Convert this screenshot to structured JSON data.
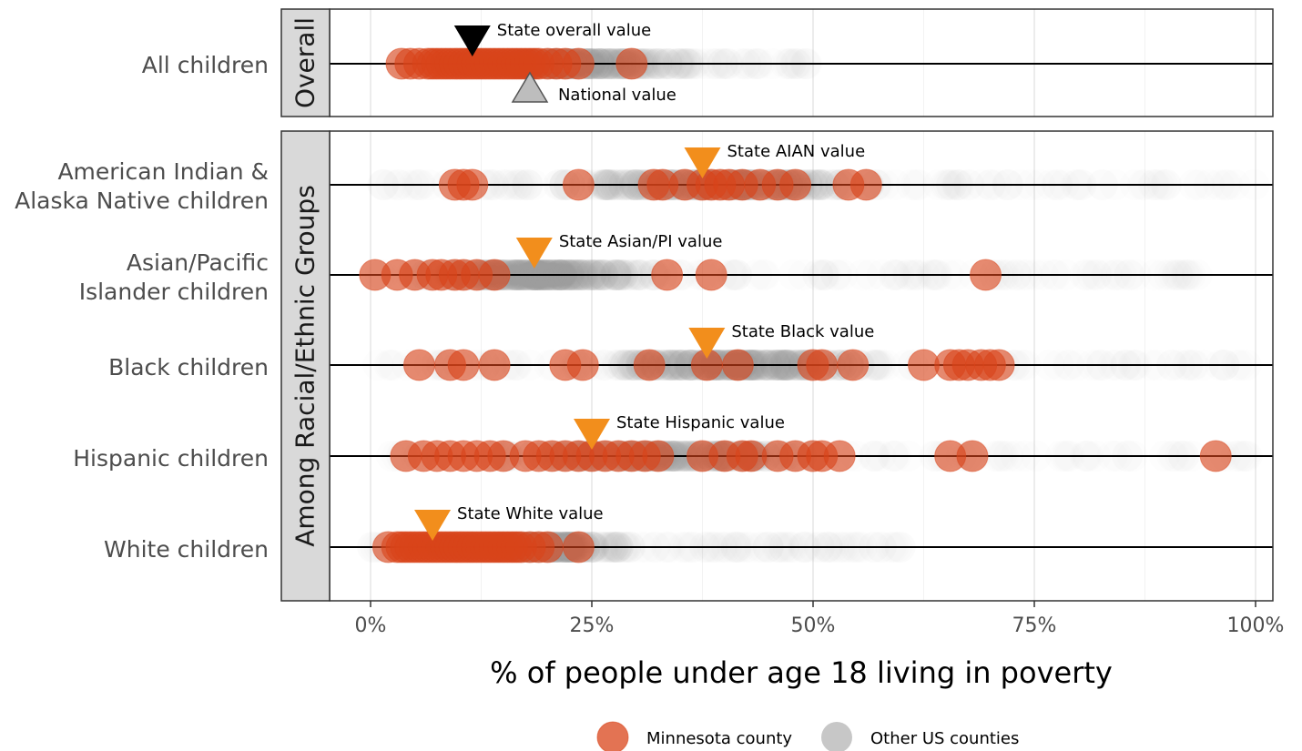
{
  "chart_data": {
    "type": "scatter",
    "title": "",
    "xlabel": "% of people under age 18 living in poverty",
    "x_ticks": [
      "0%",
      "25%",
      "50%",
      "75%",
      "100%"
    ],
    "xlim": [
      -10,
      102
    ],
    "grid": true,
    "legend_position": "bottom",
    "colors": {
      "state": "#d9441a",
      "other": "#bdbdbd",
      "state_marker": "#000000",
      "national_marker": "#bdbdbd",
      "group_marker": "#f28e1c"
    },
    "legend": [
      {
        "label": "Minnesota county",
        "color": "#d9441a"
      },
      {
        "label": "Other US counties",
        "color": "#bdbdbd"
      }
    ],
    "panels": [
      {
        "strip": "Overall",
        "rows": [
          {
            "label": [
              "All children"
            ],
            "state_marker": {
              "label": "State overall value",
              "x": 11.5
            },
            "national_marker": {
              "label": "National value",
              "x": 18
            },
            "other_spread": [
              3,
              50
            ],
            "other_core": [
              5,
              38
            ],
            "state_counties": [
              3.5,
              4.5,
              5.5,
              6.5,
              7,
              7.5,
              8,
              8.5,
              9,
              9.5,
              10,
              10.5,
              11,
              11.5,
              12,
              12.5,
              13,
              13.5,
              14,
              14.5,
              15,
              15.5,
              16,
              16.5,
              17,
              17.5,
              18,
              18.5,
              19,
              20,
              21,
              22,
              23.5,
              29.5
            ]
          }
        ]
      },
      {
        "strip": "Among Racial/Ethnic Groups",
        "rows": [
          {
            "label": [
              "American Indian &",
              "Alaska Native children"
            ],
            "state_marker": {
              "label": "State AIAN value",
              "x": 37.5
            },
            "other_spread": [
              0,
              100
            ],
            "other_core": [
              20,
              60
            ],
            "state_counties": [
              9.5,
              10.5,
              11.5,
              23.5,
              32,
              33,
              35.5,
              37.5,
              38.5,
              39.5,
              40.5,
              42,
              44,
              46,
              48,
              54,
              56
            ]
          },
          {
            "label": [
              "Asian/Pacific",
              "Islander children"
            ],
            "state_marker": {
              "label": "State Asian/PI value",
              "x": 18.5
            },
            "other_spread": [
              0,
              95
            ],
            "other_core": [
              2,
              35
            ],
            "state_counties": [
              0.5,
              3,
              5,
              7,
              8,
              9.5,
              10.5,
              12,
              14,
              33.5,
              38.5,
              69.5
            ]
          },
          {
            "label": [
              "Black children"
            ],
            "state_marker": {
              "label": "State Black value",
              "x": 38
            },
            "other_spread": [
              0,
              100
            ],
            "other_core": [
              20,
              62
            ],
            "state_counties": [
              5.5,
              9,
              10.5,
              14,
              22,
              24,
              31.5,
              38,
              41.5,
              50,
              51,
              54.5,
              62.5,
              65.5,
              66.5,
              67.5,
              69,
              70,
              71
            ]
          },
          {
            "label": [
              "Hispanic children"
            ],
            "state_marker": {
              "label": "State Hispanic value",
              "x": 25
            },
            "other_spread": [
              0,
              100
            ],
            "other_core": [
              10,
              55
            ],
            "state_counties": [
              4,
              6,
              7.5,
              9,
              10.5,
              12,
              13.5,
              15,
              17.5,
              19,
              20.5,
              22,
              23.5,
              25,
              26.5,
              28,
              29.5,
              31,
              32.5,
              37.5,
              40,
              42,
              43,
              46,
              48,
              50,
              51,
              53,
              65.5,
              68,
              95.5
            ]
          },
          {
            "label": [
              "White children"
            ],
            "state_marker": {
              "label": "State White value",
              "x": 7
            },
            "other_spread": [
              0,
              60
            ],
            "other_core": [
              3,
              32
            ],
            "state_counties": [
              2,
              3,
              3.5,
              4,
              4.5,
              5,
              5.5,
              6,
              6.5,
              7,
              7.5,
              8,
              8.5,
              9,
              9.5,
              10,
              10.5,
              11,
              11.5,
              12,
              12.5,
              13,
              13.5,
              14,
              14.5,
              15,
              15.5,
              16,
              16.5,
              17,
              18,
              19,
              20,
              23.5
            ]
          }
        ]
      }
    ]
  }
}
